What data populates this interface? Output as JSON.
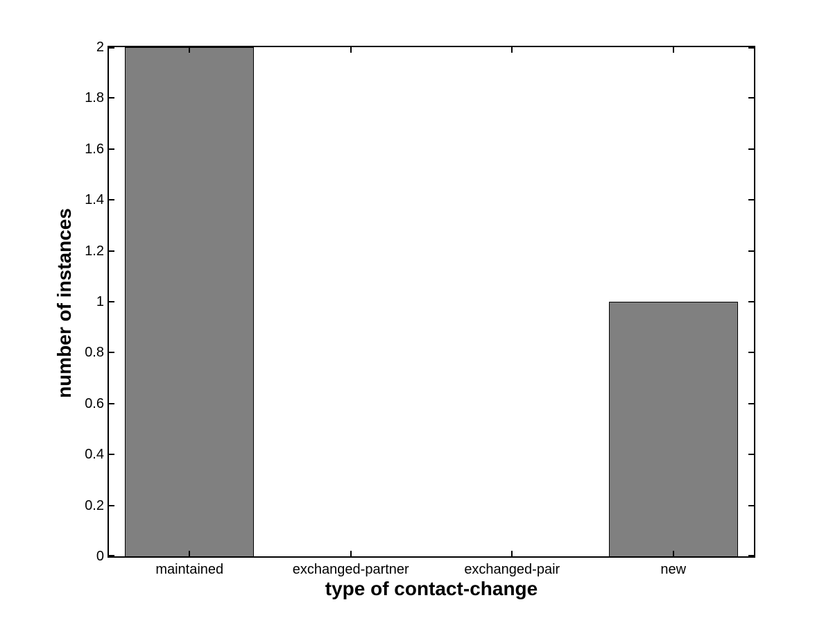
{
  "chart_data": {
    "type": "bar",
    "title": "",
    "categories": [
      "maintained",
      "exchanged-partner",
      "exchanged-pair",
      "new"
    ],
    "values": [
      2,
      0,
      0,
      1
    ],
    "xlabel": "type of contact-change",
    "ylabel": "number of instances",
    "ylim": [
      0,
      2
    ],
    "yticks": [
      0,
      0.2,
      0.4,
      0.6,
      0.8,
      1,
      1.2,
      1.4,
      1.6,
      1.8,
      2
    ],
    "ytick_labels": [
      "0",
      "0.2",
      "0.4",
      "0.6",
      "0.8",
      "1",
      "1.2",
      "1.4",
      "1.6",
      "1.8",
      "2"
    ],
    "bar_width_fraction": 0.8,
    "bar_color": "#808080",
    "bar_edge_color": "#000000",
    "axis_color": "#000000",
    "background_color": "#ffffff",
    "grid": false,
    "legend_position": "none"
  }
}
